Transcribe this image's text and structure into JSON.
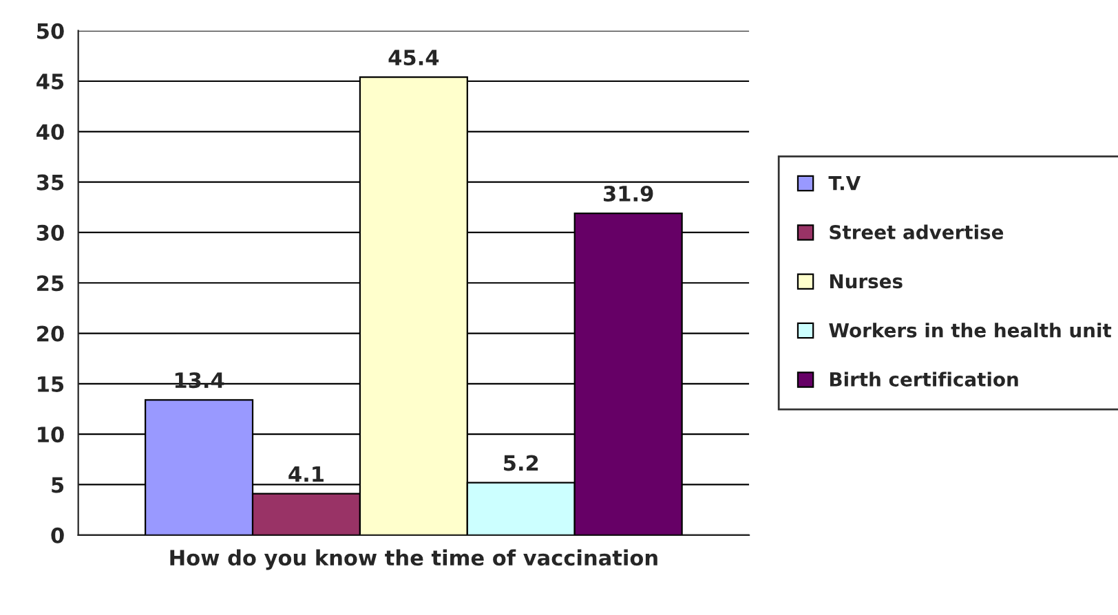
{
  "chart_data": {
    "type": "bar",
    "xlabel": "How do you know the time of vaccination",
    "categories": [
      null
    ],
    "series": [
      {
        "name": "T.V",
        "color": "#9999ff",
        "values": [
          13.4
        ]
      },
      {
        "name": "Street advertise",
        "color": "#993366",
        "values": [
          4.1
        ]
      },
      {
        "name": "Nurses",
        "color": "#ffffcc",
        "values": [
          45.4
        ]
      },
      {
        "name": "Workers in the health unit",
        "color": "#ccffff",
        "values": [
          5.2
        ]
      },
      {
        "name": "Birth certification",
        "color": "#660066",
        "values": [
          31.9
        ]
      }
    ],
    "ylim": [
      0,
      50
    ],
    "yticks": [
      0,
      5,
      10,
      15,
      20,
      25,
      30,
      35,
      40,
      45,
      50
    ],
    "grid": "y",
    "legend": "right",
    "data_labels": true
  }
}
